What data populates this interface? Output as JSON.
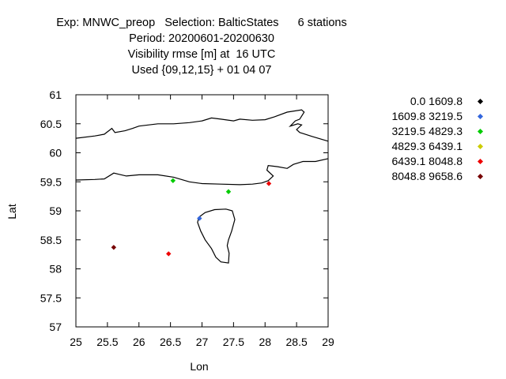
{
  "title_lines": [
    "Exp: MNWC_preop   Selection: BalticStates      6 stations",
    "Period: 20200601-20200630",
    "Visibility rmse [m] at  16 UTC",
    "Used {09,12,15} + 01 04 07"
  ],
  "chart_data": {
    "type": "scatter",
    "xlabel": "Lon",
    "ylabel": "Lat",
    "xlim": [
      25,
      29
    ],
    "ylim": [
      57,
      61
    ],
    "xticks": [
      "25",
      "25.5",
      "26",
      "26.5",
      "27",
      "27.5",
      "28",
      "28.5",
      "29"
    ],
    "yticks": [
      "57",
      "57.5",
      "58",
      "58.5",
      "59",
      "59.5",
      "60",
      "60.5",
      "61"
    ],
    "grid": false,
    "legend_position": "right",
    "legend": [
      {
        "label": "0.0 1609.8",
        "color": "#000000"
      },
      {
        "label": "1609.8 3219.5",
        "color": "#3366dd"
      },
      {
        "label": "3219.5 4829.3",
        "color": "#00cc00"
      },
      {
        "label": "4829.3 6439.1",
        "color": "#cccc00"
      },
      {
        "label": "6439.1 8048.8",
        "color": "#ee0000"
      },
      {
        "label": "8048.8 9658.6",
        "color": "#770000"
      }
    ],
    "points": [
      {
        "lon": 26.54,
        "lat": 59.52,
        "class": 2
      },
      {
        "lon": 27.42,
        "lat": 59.33,
        "class": 2
      },
      {
        "lon": 28.06,
        "lat": 59.47,
        "class": 4
      },
      {
        "lon": 26.96,
        "lat": 58.87,
        "class": 1
      },
      {
        "lon": 25.6,
        "lat": 58.37,
        "class": 5
      },
      {
        "lon": 26.47,
        "lat": 58.26,
        "class": 4
      }
    ],
    "coastlines": [
      [
        [
          25.0,
          60.25
        ],
        [
          25.3,
          60.29
        ],
        [
          25.45,
          60.32
        ],
        [
          25.57,
          60.42
        ],
        [
          25.62,
          60.35
        ],
        [
          25.78,
          60.38
        ],
        [
          25.9,
          60.42
        ],
        [
          26.0,
          60.46
        ],
        [
          26.3,
          60.5
        ],
        [
          26.55,
          60.5
        ],
        [
          26.8,
          60.52
        ],
        [
          27.0,
          60.55
        ],
        [
          27.15,
          60.6
        ],
        [
          27.3,
          60.58
        ],
        [
          27.5,
          60.55
        ],
        [
          27.6,
          60.58
        ],
        [
          27.8,
          60.56
        ],
        [
          28.0,
          60.57
        ],
        [
          28.15,
          60.62
        ],
        [
          28.35,
          60.7
        ],
        [
          28.58,
          60.74
        ],
        [
          28.62,
          60.7
        ],
        [
          28.55,
          60.58
        ],
        [
          28.48,
          60.55
        ],
        [
          28.4,
          60.46
        ],
        [
          28.52,
          60.5
        ],
        [
          28.58,
          60.48
        ],
        [
          28.5,
          60.4
        ],
        [
          28.55,
          60.35
        ],
        [
          28.75,
          60.28
        ],
        [
          29.0,
          60.2
        ]
      ],
      [
        [
          25.0,
          59.53
        ],
        [
          25.3,
          59.54
        ],
        [
          25.45,
          59.55
        ],
        [
          25.6,
          59.65
        ],
        [
          25.68,
          59.63
        ],
        [
          25.8,
          59.6
        ],
        [
          26.0,
          59.62
        ],
        [
          26.3,
          59.62
        ],
        [
          26.55,
          59.58
        ],
        [
          26.8,
          59.5
        ],
        [
          27.0,
          59.47
        ],
        [
          27.3,
          59.46
        ],
        [
          27.6,
          59.45
        ],
        [
          27.8,
          59.46
        ],
        [
          27.95,
          59.48
        ],
        [
          28.05,
          59.52
        ],
        [
          28.13,
          59.6
        ],
        [
          28.03,
          59.7
        ],
        [
          28.05,
          59.78
        ],
        [
          28.2,
          59.76
        ],
        [
          28.35,
          59.73
        ],
        [
          28.45,
          59.8
        ],
        [
          28.6,
          59.85
        ],
        [
          28.8,
          59.85
        ],
        [
          29.0,
          59.9
        ]
      ],
      [
        [
          26.95,
          58.89
        ],
        [
          27.05,
          58.97
        ],
        [
          27.2,
          59.02
        ],
        [
          27.38,
          59.03
        ],
        [
          27.48,
          59.0
        ],
        [
          27.52,
          58.85
        ],
        [
          27.47,
          58.65
        ],
        [
          27.42,
          58.5
        ],
        [
          27.4,
          58.4
        ],
        [
          27.43,
          58.27
        ],
        [
          27.42,
          58.1
        ],
        [
          27.3,
          58.12
        ],
        [
          27.22,
          58.2
        ],
        [
          27.15,
          58.35
        ],
        [
          27.05,
          58.5
        ],
        [
          26.98,
          58.65
        ],
        [
          26.93,
          58.8
        ],
        [
          26.95,
          58.89
        ]
      ]
    ]
  }
}
